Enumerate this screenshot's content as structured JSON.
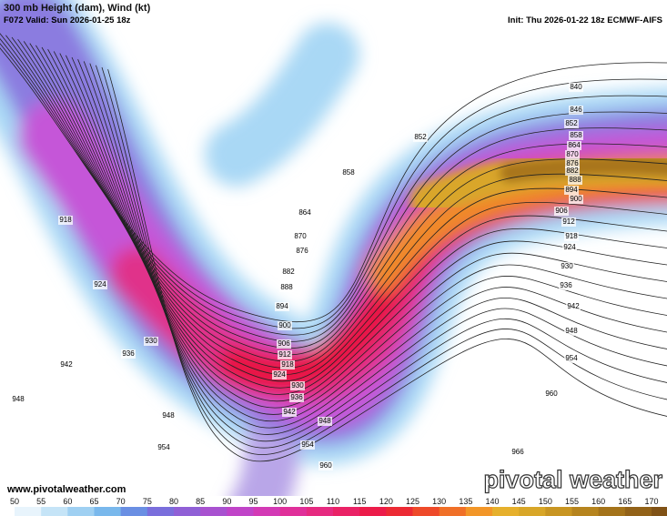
{
  "header": {
    "title": "300 mb Height (dam), Wind (kt)",
    "valid": "F072 Valid: Sun 2026-01-25 18z",
    "init": "Init: Thu 2026-01-22 18z ECMWF-AIFS"
  },
  "contour_labels": [
    "840",
    "846",
    "852",
    "858",
    "864",
    "870",
    "876",
    "882",
    "888",
    "894",
    "900",
    "906",
    "912",
    "918",
    "924",
    "930",
    "936",
    "942",
    "948",
    "954",
    "960",
    "966",
    "852",
    "858",
    "864",
    "870",
    "876",
    "882",
    "888",
    "894",
    "900",
    "906",
    "912",
    "918",
    "924",
    "930",
    "936",
    "942",
    "948",
    "954",
    "960",
    "918",
    "924",
    "930",
    "936",
    "942",
    "948",
    "948",
    "954"
  ],
  "footer": {
    "url": "www.pivotalweather.com",
    "brand": "pivotal weather"
  },
  "colorbar": {
    "labels": [
      50,
      55,
      60,
      65,
      70,
      75,
      80,
      85,
      90,
      95,
      100,
      105,
      110,
      115,
      120,
      125,
      130,
      135,
      140,
      145,
      150,
      155,
      160,
      165,
      170
    ]
  }
}
